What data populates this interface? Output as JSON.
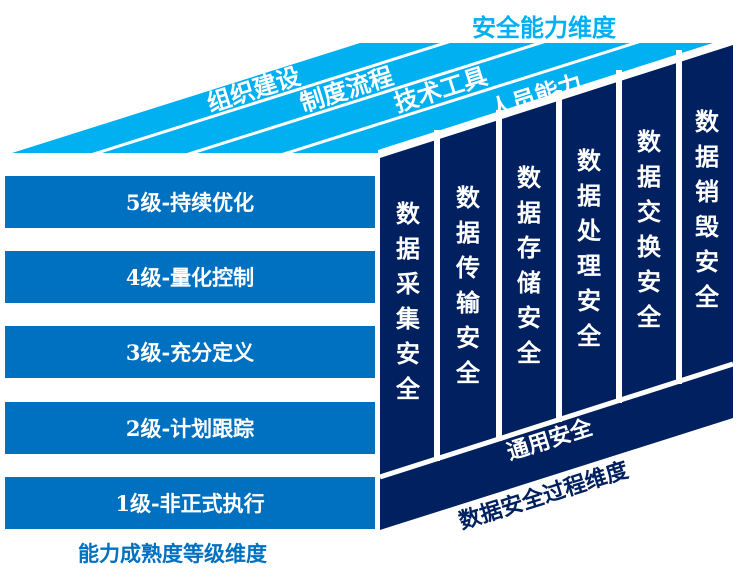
{
  "capability_dimension": {
    "title": "安全能力维度",
    "items": [
      "组织建设",
      "制度流程",
      "技术工具",
      "人员能力"
    ],
    "color": "#00B0F0"
  },
  "maturity_dimension": {
    "title": "能力成熟度等级维度",
    "levels": [
      "5级-持续优化",
      "4级-量化控制",
      "3级-充分定义",
      "2级-计划跟踪",
      "1级-非正式执行"
    ],
    "color": "#0070C0"
  },
  "process_dimension": {
    "title": "数据安全过程维度",
    "stages": [
      "数据采集安全",
      "数据传输安全",
      "数据存储安全",
      "数据处理安全",
      "数据交换安全",
      "数据销毁安全"
    ],
    "general": "通用安全",
    "color": "#002060"
  }
}
